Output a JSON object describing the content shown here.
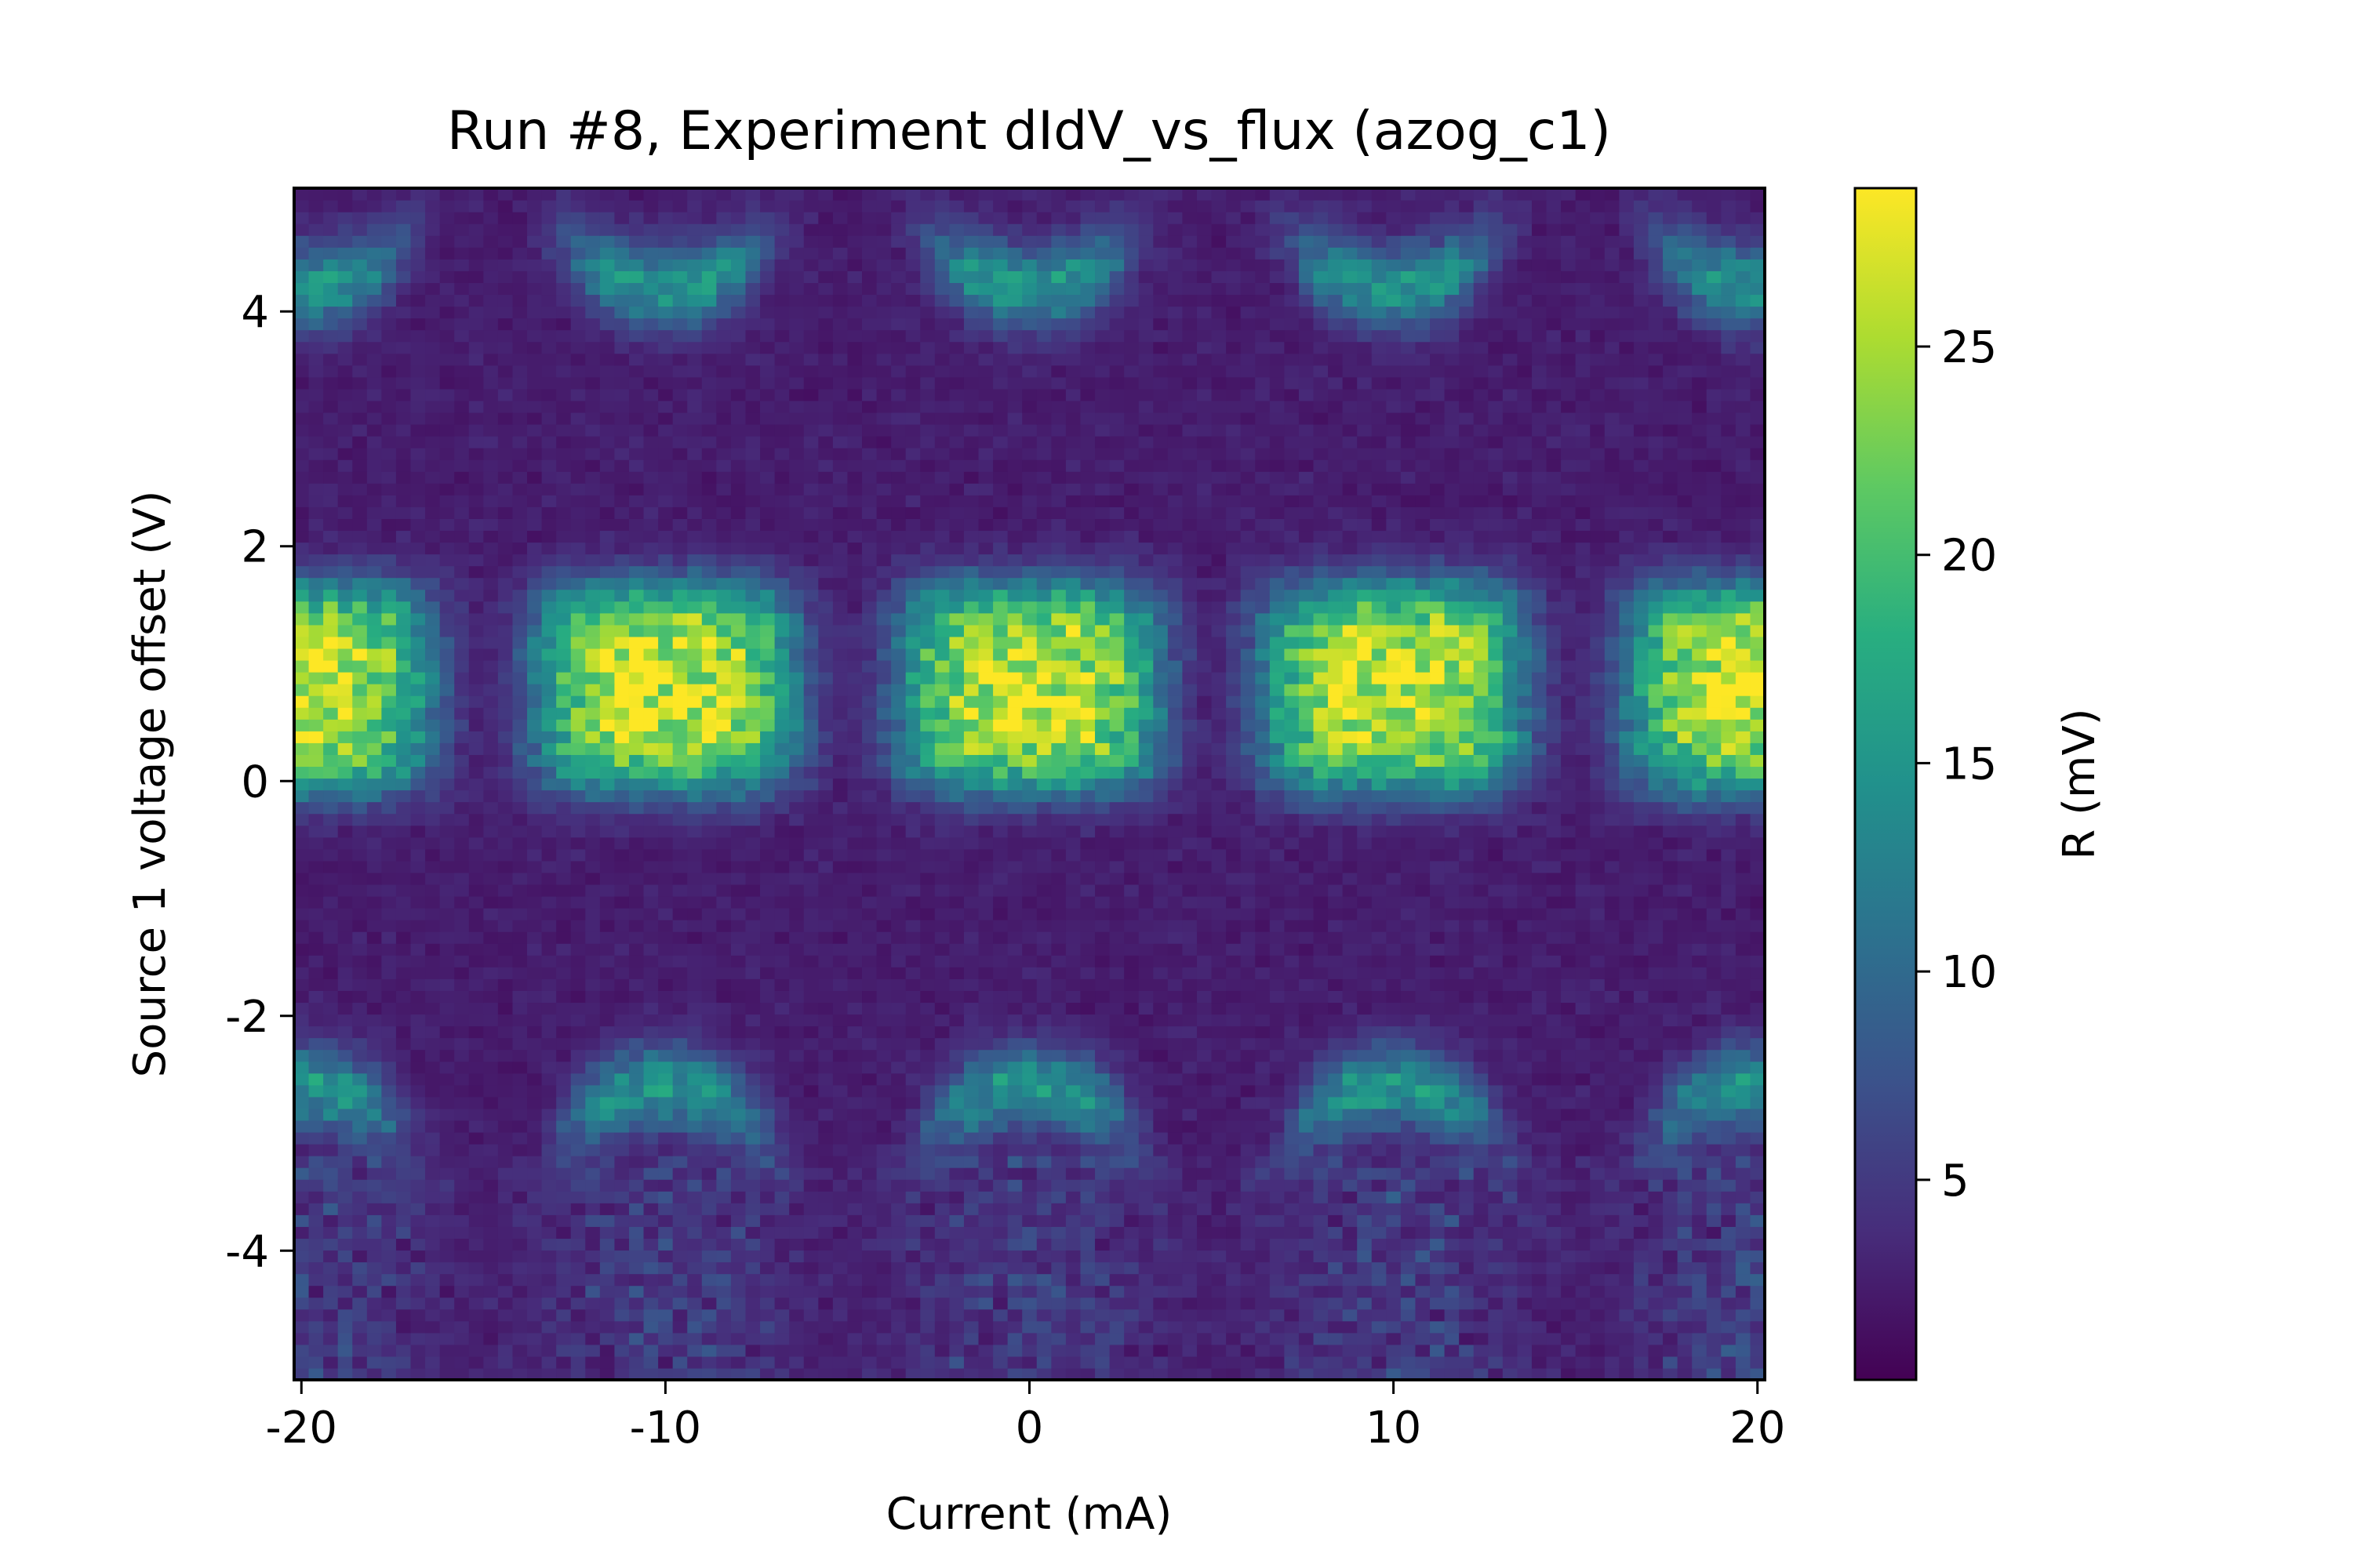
{
  "chart_data": {
    "type": "heatmap",
    "title": "Run #8, Experiment dIdV_vs_flux (azog_c1)",
    "xlabel": "Current (mA)",
    "ylabel": "Source 1 voltage offset (V)",
    "colorbar_label": "R (mV)",
    "colormap": "viridis",
    "xlim": [
      -20.2,
      20.2
    ],
    "ylim": [
      -5.1,
      5.05
    ],
    "clim": [
      0.2,
      28.8
    ],
    "x_ticks": [
      -20,
      -10,
      0,
      10,
      20
    ],
    "x_tick_labels": [
      "-20",
      "-10",
      "0",
      "10",
      "20"
    ],
    "y_ticks": [
      -4,
      -2,
      0,
      2,
      4
    ],
    "y_tick_labels": [
      "-4",
      "-2",
      "0",
      "2",
      "4"
    ],
    "colorbar_ticks": [
      5,
      10,
      15,
      20,
      25
    ],
    "colorbar_tick_labels": [
      "5",
      "10",
      "15",
      "20",
      "25"
    ],
    "grid": {
      "x_start": -20.2,
      "x_stop": 20.2,
      "nx": 101,
      "y_start": -5.1,
      "y_stop": 5.05,
      "ny": 101
    },
    "features": {
      "flux_period_mA": 10,
      "lobe_centers_mA": [
        -20,
        -10,
        0,
        10,
        20
      ],
      "central_lobe": {
        "v_center": 0.8,
        "peak_R": 26,
        "half_width_mA": 3.6,
        "half_height_V": 0.9
      },
      "upper_arc": {
        "v_center": 4.2,
        "peak_R": 15
      },
      "lower_arc": {
        "v_center": -2.6,
        "peak_R": 15
      },
      "background_R": 2.5
    }
  }
}
